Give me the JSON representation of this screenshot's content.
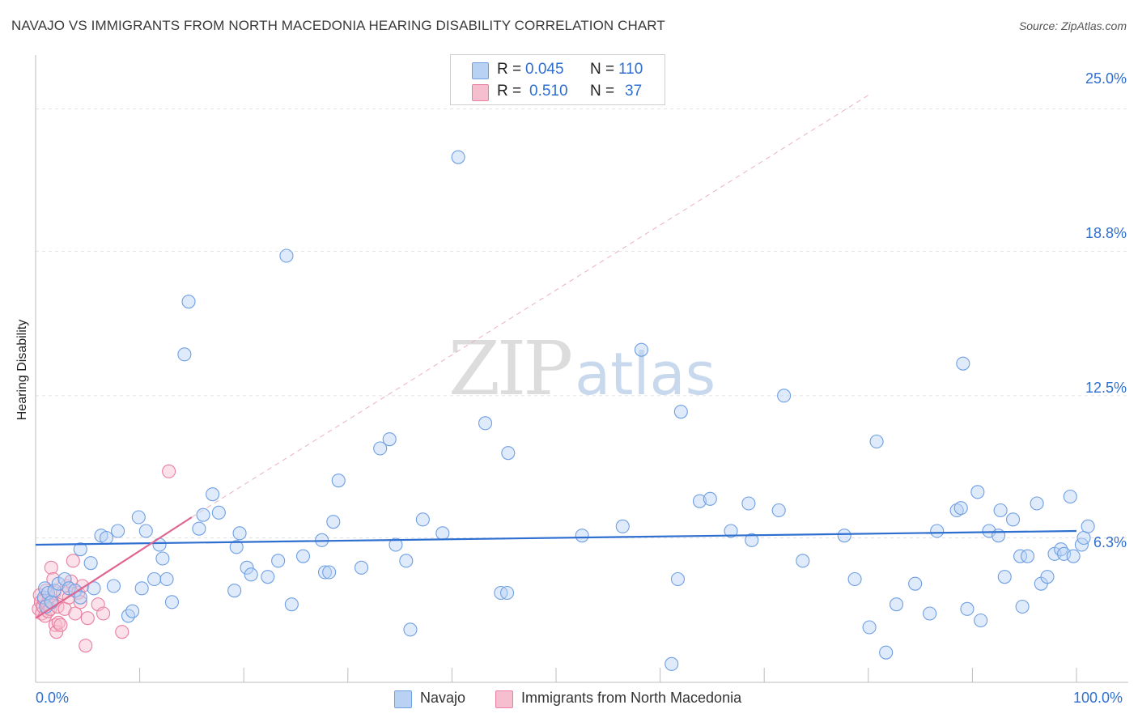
{
  "title": "NAVAJO VS IMMIGRANTS FROM NORTH MACEDONIA HEARING DISABILITY CORRELATION CHART",
  "source": "Source: ZipAtlas.com",
  "watermark": {
    "zip": "ZIP",
    "atlas": "atlas"
  },
  "legend_top": {
    "rows": [
      {
        "r_label": "R =",
        "r_value": "0.045",
        "n_label": "N =",
        "n_value": "110"
      },
      {
        "r_label": "R =",
        "r_value": "0.510",
        "n_label": "N =",
        "n_value": "37"
      }
    ]
  },
  "chart_data": {
    "type": "scatter",
    "title": "NAVAJO VS IMMIGRANTS FROM NORTH MACEDONIA HEARING DISABILITY CORRELATION CHART",
    "xlabel": "",
    "ylabel": "Hearing Disability",
    "xlim": [
      0,
      100
    ],
    "ylim": [
      0,
      27
    ],
    "x_tick_labels": [
      "0.0%",
      "100.0%"
    ],
    "y_ticks": [
      6.3,
      12.5,
      18.8,
      25.0
    ],
    "y_tick_labels": [
      "6.3%",
      "12.5%",
      "18.8%",
      "25.0%"
    ],
    "grid": "horizontal dashed",
    "legend": "bottom-center",
    "colors": {
      "navajo": "#6f9fe3",
      "navajo_fill": "#b9d2f4",
      "macedonia": "#ea7fa0",
      "macedonia_fill": "#f6bfd0",
      "navajo_line": "#2f6fd0",
      "macedonia_line": "#e06590"
    },
    "series": [
      {
        "name": "Navajo",
        "R": 0.045,
        "N": 110,
        "trend": {
          "x": [
            0,
            100
          ],
          "y": [
            6.0,
            6.6
          ]
        },
        "points": [
          [
            0.8,
            3.7
          ],
          [
            0.9,
            4.1
          ],
          [
            1.0,
            3.3
          ],
          [
            1.2,
            3.9
          ],
          [
            1.5,
            3.5
          ],
          [
            1.8,
            4.0
          ],
          [
            2.2,
            4.3
          ],
          [
            2.8,
            4.5
          ],
          [
            3.2,
            4.1
          ],
          [
            3.8,
            4.0
          ],
          [
            4.3,
            3.7
          ],
          [
            4.3,
            5.8
          ],
          [
            5.3,
            5.2
          ],
          [
            5.6,
            4.1
          ],
          [
            6.3,
            6.4
          ],
          [
            6.8,
            6.3
          ],
          [
            7.5,
            4.2
          ],
          [
            7.9,
            6.6
          ],
          [
            8.9,
            2.9
          ],
          [
            9.3,
            3.1
          ],
          [
            9.9,
            7.2
          ],
          [
            10.2,
            4.1
          ],
          [
            10.6,
            6.6
          ],
          [
            11.4,
            4.5
          ],
          [
            11.9,
            6.0
          ],
          [
            12.2,
            5.4
          ],
          [
            12.6,
            4.5
          ],
          [
            13.1,
            3.5
          ],
          [
            14.3,
            14.3
          ],
          [
            14.7,
            16.6
          ],
          [
            15.7,
            6.7
          ],
          [
            16.1,
            7.3
          ],
          [
            17.0,
            8.2
          ],
          [
            17.6,
            7.4
          ],
          [
            19.1,
            4.0
          ],
          [
            19.3,
            5.9
          ],
          [
            19.6,
            6.5
          ],
          [
            20.3,
            5.0
          ],
          [
            20.7,
            4.7
          ],
          [
            22.3,
            4.6
          ],
          [
            23.3,
            5.3
          ],
          [
            24.1,
            18.6
          ],
          [
            24.6,
            3.4
          ],
          [
            25.7,
            5.5
          ],
          [
            27.5,
            6.2
          ],
          [
            27.8,
            4.8
          ],
          [
            28.2,
            4.8
          ],
          [
            28.6,
            7.0
          ],
          [
            29.1,
            8.8
          ],
          [
            31.3,
            5.0
          ],
          [
            33.1,
            10.2
          ],
          [
            34.0,
            10.6
          ],
          [
            34.6,
            6.0
          ],
          [
            35.6,
            5.3
          ],
          [
            36.0,
            2.3
          ],
          [
            37.2,
            7.1
          ],
          [
            39.1,
            6.5
          ],
          [
            40.6,
            22.9
          ],
          [
            43.2,
            11.3
          ],
          [
            44.7,
            3.9
          ],
          [
            45.3,
            3.9
          ],
          [
            45.4,
            10.0
          ],
          [
            52.5,
            6.4
          ],
          [
            56.4,
            6.8
          ],
          [
            58.2,
            14.5
          ],
          [
            61.1,
            0.8
          ],
          [
            61.7,
            4.5
          ],
          [
            62.0,
            11.8
          ],
          [
            63.8,
            7.9
          ],
          [
            64.8,
            8.0
          ],
          [
            66.8,
            6.6
          ],
          [
            68.5,
            7.8
          ],
          [
            68.8,
            6.2
          ],
          [
            71.4,
            7.5
          ],
          [
            71.9,
            12.5
          ],
          [
            73.7,
            5.3
          ],
          [
            77.7,
            6.4
          ],
          [
            78.7,
            4.5
          ],
          [
            80.1,
            2.4
          ],
          [
            80.8,
            10.5
          ],
          [
            81.7,
            1.3
          ],
          [
            82.7,
            3.4
          ],
          [
            84.5,
            4.3
          ],
          [
            85.9,
            3.0
          ],
          [
            86.6,
            6.6
          ],
          [
            88.5,
            7.5
          ],
          [
            88.9,
            7.6
          ],
          [
            89.1,
            13.9
          ],
          [
            89.5,
            3.2
          ],
          [
            90.5,
            8.3
          ],
          [
            90.8,
            2.7
          ],
          [
            91.6,
            6.6
          ],
          [
            92.5,
            6.4
          ],
          [
            92.7,
            7.5
          ],
          [
            93.1,
            4.6
          ],
          [
            93.9,
            7.1
          ],
          [
            94.6,
            5.5
          ],
          [
            94.8,
            3.3
          ],
          [
            95.3,
            5.5
          ],
          [
            96.2,
            7.8
          ],
          [
            96.6,
            4.3
          ],
          [
            97.2,
            4.6
          ],
          [
            97.9,
            5.6
          ],
          [
            98.5,
            5.8
          ],
          [
            98.8,
            5.6
          ],
          [
            99.4,
            8.1
          ],
          [
            99.7,
            5.5
          ],
          [
            100.5,
            6.0
          ],
          [
            100.7,
            6.3
          ],
          [
            101.1,
            6.8
          ]
        ]
      },
      {
        "name": "Immigrants from North Macedonia",
        "R": 0.51,
        "N": 37,
        "trend": {
          "x": [
            0,
            15
          ],
          "y": [
            2.8,
            7.2
          ]
        },
        "trend_extended": {
          "x": [
            15,
            80
          ],
          "y": [
            7.2,
            25.6
          ]
        },
        "points": [
          [
            0.3,
            3.2
          ],
          [
            0.4,
            3.8
          ],
          [
            0.5,
            3.5
          ],
          [
            0.6,
            3.0
          ],
          [
            0.7,
            3.3
          ],
          [
            0.8,
            3.6
          ],
          [
            0.9,
            2.9
          ],
          [
            1.0,
            4.0
          ],
          [
            1.1,
            3.4
          ],
          [
            1.2,
            3.1
          ],
          [
            1.3,
            3.7
          ],
          [
            1.4,
            3.2
          ],
          [
            1.5,
            5.0
          ],
          [
            1.6,
            3.5
          ],
          [
            1.7,
            4.5
          ],
          [
            1.8,
            3.9
          ],
          [
            1.9,
            2.5
          ],
          [
            2.0,
            2.2
          ],
          [
            2.1,
            3.3
          ],
          [
            2.2,
            2.6
          ],
          [
            2.4,
            2.5
          ],
          [
            2.6,
            3.9
          ],
          [
            2.8,
            3.2
          ],
          [
            3.0,
            4.2
          ],
          [
            3.2,
            3.7
          ],
          [
            3.4,
            4.4
          ],
          [
            3.6,
            5.3
          ],
          [
            3.8,
            3.0
          ],
          [
            4.1,
            3.9
          ],
          [
            4.3,
            3.5
          ],
          [
            4.5,
            4.2
          ],
          [
            4.8,
            1.6
          ],
          [
            5.0,
            2.8
          ],
          [
            6.0,
            3.4
          ],
          [
            6.5,
            3.0
          ],
          [
            8.3,
            2.2
          ],
          [
            12.8,
            9.2
          ]
        ]
      }
    ]
  },
  "legend_bottom": {
    "items": [
      "Navajo",
      "Immigrants from North Macedonia"
    ]
  }
}
